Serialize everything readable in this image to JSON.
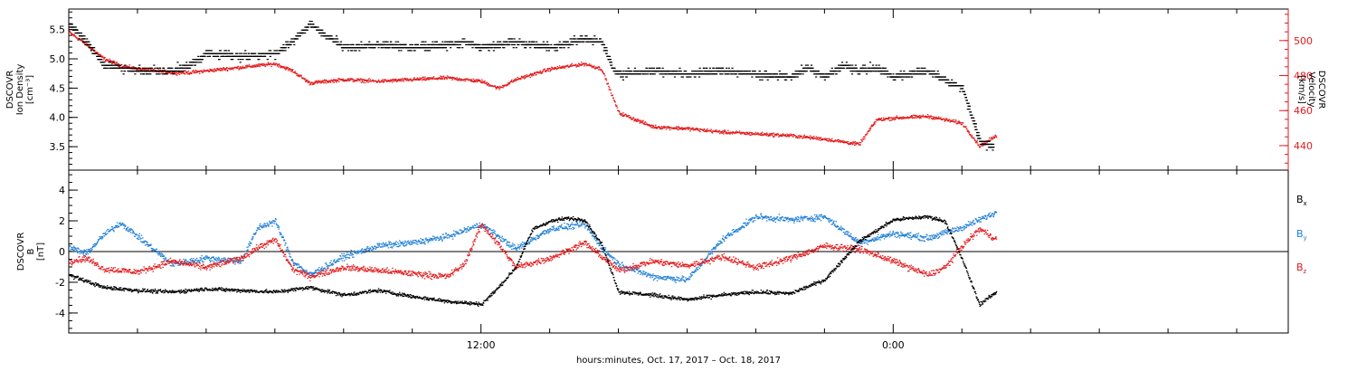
{
  "x_axis_label": "hours:minutes, Oct. 17, 2017 – Oct. 18, 2017",
  "colors": {
    "black": "#000000",
    "red": "#e31a1c",
    "blue": "#1f7fd6"
  },
  "chart_data": [
    {
      "type": "scatter",
      "panel": "top",
      "ylabel_left": [
        "DSCOVR",
        "Ion Density",
        "[cm⁻³]"
      ],
      "ylabel_right": [
        "DSCOVR",
        "Velocity",
        "[km/s]"
      ],
      "x_ticks": [
        {
          "hour": 12,
          "label": "12:00"
        },
        {
          "hour": 24,
          "label": "0:00"
        }
      ],
      "xlim_hours": [
        0,
        35.5
      ],
      "ylim_left": [
        3.1,
        5.85
      ],
      "yticks_left": [
        "5.5",
        "5.0",
        "4.5",
        "4.0",
        "3.5"
      ],
      "ylim_right": [
        426,
        518
      ],
      "yticks_right": [
        "500",
        "480",
        "460",
        "440"
      ],
      "series": [
        {
          "color": "black",
          "axis": "left",
          "points": [
            [
              0,
              5.6
            ],
            [
              0.5,
              5.3
            ],
            [
              1,
              4.9
            ],
            [
              1.5,
              4.85
            ],
            [
              2,
              4.8
            ],
            [
              3,
              4.8
            ],
            [
              3.5,
              4.9
            ],
            [
              4,
              5.1
            ],
            [
              5,
              5.05
            ],
            [
              6,
              5.1
            ],
            [
              6.5,
              5.3
            ],
            [
              7,
              5.6
            ],
            [
              7.5,
              5.4
            ],
            [
              8,
              5.2
            ],
            [
              9,
              5.25
            ],
            [
              10,
              5.2
            ],
            [
              11,
              5.25
            ],
            [
              11.5,
              5.3
            ],
            [
              12,
              5.2
            ],
            [
              12.5,
              5.25
            ],
            [
              13,
              5.3
            ],
            [
              14,
              5.2
            ],
            [
              15,
              5.35
            ],
            [
              15.5,
              5.3
            ],
            [
              15.8,
              4.85
            ],
            [
              16,
              4.75
            ],
            [
              17,
              4.8
            ],
            [
              18,
              4.75
            ],
            [
              19,
              4.8
            ],
            [
              20,
              4.75
            ],
            [
              21,
              4.7
            ],
            [
              21.5,
              4.85
            ],
            [
              22,
              4.7
            ],
            [
              22.5,
              4.9
            ],
            [
              23,
              4.8
            ],
            [
              23.5,
              4.85
            ],
            [
              24,
              4.7
            ],
            [
              25,
              4.8
            ],
            [
              26,
              4.5
            ],
            [
              26.5,
              3.6
            ],
            [
              26.9,
              3.5
            ]
          ]
        },
        {
          "color": "red",
          "axis": "right",
          "points": [
            [
              0,
              505
            ],
            [
              0.5,
              498
            ],
            [
              1,
              490
            ],
            [
              1.5,
              486
            ],
            [
              2,
              484
            ],
            [
              3,
              482
            ],
            [
              3.5,
              482
            ],
            [
              4,
              483
            ],
            [
              5,
              485
            ],
            [
              6,
              487
            ],
            [
              6.5,
              483
            ],
            [
              7,
              476
            ],
            [
              8,
              478
            ],
            [
              9,
              477
            ],
            [
              10,
              478
            ],
            [
              11,
              479
            ],
            [
              12,
              477
            ],
            [
              12.5,
              473
            ],
            [
              13,
              478
            ],
            [
              14,
              484
            ],
            [
              15,
              487
            ],
            [
              15.5,
              484
            ],
            [
              16,
              459
            ],
            [
              17,
              451
            ],
            [
              18,
              450
            ],
            [
              19,
              448
            ],
            [
              20,
              447
            ],
            [
              21,
              446
            ],
            [
              22,
              444
            ],
            [
              23,
              441
            ],
            [
              23.5,
              455
            ],
            [
              24,
              456
            ],
            [
              25,
              457
            ],
            [
              26,
              453
            ],
            [
              26.5,
              440
            ],
            [
              27,
              446
            ]
          ]
        }
      ]
    },
    {
      "type": "scatter",
      "panel": "bottom",
      "ylabel_left": [
        "DSCOVR",
        "B",
        "[nT]"
      ],
      "yticks_left": [
        "4",
        "2",
        "0",
        "-2",
        "-4"
      ],
      "ylim": [
        -5.3,
        5.3
      ],
      "xlim_hours": [
        0,
        35.5
      ],
      "legend": [
        {
          "label": "Bₓ",
          "color": "black"
        },
        {
          "label": "Bᵧ",
          "color": "blue"
        },
        {
          "label": "B_z",
          "color": "red"
        }
      ],
      "series": [
        {
          "name": "Bx",
          "color": "black",
          "points": [
            [
              0,
              -1.5
            ],
            [
              0.5,
              -1.9
            ],
            [
              1,
              -2.3
            ],
            [
              2,
              -2.5
            ],
            [
              3,
              -2.6
            ],
            [
              4,
              -2.4
            ],
            [
              5,
              -2.5
            ],
            [
              6,
              -2.6
            ],
            [
              7,
              -2.3
            ],
            [
              8,
              -2.8
            ],
            [
              9,
              -2.5
            ],
            [
              10,
              -2.9
            ],
            [
              11,
              -3.2
            ],
            [
              12,
              -3.4
            ],
            [
              12.5,
              -2.3
            ],
            [
              13,
              -1.0
            ],
            [
              13.5,
              1.5
            ],
            [
              14,
              2.0
            ],
            [
              14.5,
              2.2
            ],
            [
              15,
              2.1
            ],
            [
              15.5,
              0.5
            ],
            [
              16,
              -2.6
            ],
            [
              17,
              -2.8
            ],
            [
              18,
              -3.1
            ],
            [
              19,
              -2.8
            ],
            [
              20,
              -2.6
            ],
            [
              21,
              -2.7
            ],
            [
              22,
              -1.8
            ],
            [
              23,
              0.7
            ],
            [
              24,
              2.1
            ],
            [
              25,
              2.3
            ],
            [
              25.5,
              2.0
            ],
            [
              26,
              -0.5
            ],
            [
              26.5,
              -3.4
            ],
            [
              27,
              -2.6
            ]
          ]
        },
        {
          "name": "By",
          "color": "blue",
          "points": [
            [
              0,
              0.3
            ],
            [
              0.5,
              -0.1
            ],
            [
              1,
              1.1
            ],
            [
              1.5,
              1.9
            ],
            [
              2,
              1.0
            ],
            [
              3,
              -0.8
            ],
            [
              4,
              -0.4
            ],
            [
              5,
              -0.6
            ],
            [
              5.5,
              1.6
            ],
            [
              6,
              2.0
            ],
            [
              6.5,
              -0.6
            ],
            [
              7,
              -1.5
            ],
            [
              8,
              -0.3
            ],
            [
              9,
              0.4
            ],
            [
              10,
              0.6
            ],
            [
              11,
              1.0
            ],
            [
              12,
              1.8
            ],
            [
              12.5,
              1.0
            ],
            [
              13,
              0.2
            ],
            [
              14,
              1.5
            ],
            [
              15,
              1.8
            ],
            [
              15.5,
              0.3
            ],
            [
              16,
              -0.8
            ],
            [
              17,
              -1.6
            ],
            [
              18,
              -1.8
            ],
            [
              19,
              0.8
            ],
            [
              20,
              2.3
            ],
            [
              21,
              2.1
            ],
            [
              22,
              2.3
            ],
            [
              23,
              0.6
            ],
            [
              24,
              1.2
            ],
            [
              25,
              0.9
            ],
            [
              26,
              1.6
            ],
            [
              27,
              2.6
            ]
          ]
        },
        {
          "name": "Bz",
          "color": "red",
          "points": [
            [
              0,
              -0.6
            ],
            [
              0.5,
              -0.4
            ],
            [
              1,
              -1.1
            ],
            [
              2,
              -1.3
            ],
            [
              3,
              -0.6
            ],
            [
              4,
              -1.0
            ],
            [
              5,
              -0.4
            ],
            [
              5.5,
              0.3
            ],
            [
              6,
              0.8
            ],
            [
              6.5,
              -1.1
            ],
            [
              7,
              -1.6
            ],
            [
              8,
              -1.0
            ],
            [
              9,
              -1.2
            ],
            [
              10,
              -1.4
            ],
            [
              11,
              -1.6
            ],
            [
              11.5,
              -0.8
            ],
            [
              12,
              1.8
            ],
            [
              12.5,
              0.5
            ],
            [
              13,
              -1.0
            ],
            [
              14,
              -0.4
            ],
            [
              15,
              0.6
            ],
            [
              15.5,
              -0.3
            ],
            [
              16,
              -1.2
            ],
            [
              17,
              -0.6
            ],
            [
              18,
              -0.9
            ],
            [
              19,
              -0.3
            ],
            [
              20,
              -1.0
            ],
            [
              21,
              -0.4
            ],
            [
              22,
              0.4
            ],
            [
              23,
              0.2
            ],
            [
              24,
              -0.6
            ],
            [
              25,
              -1.5
            ],
            [
              25.5,
              -1.0
            ],
            [
              26,
              0.4
            ],
            [
              26.5,
              1.5
            ],
            [
              27,
              0.8
            ]
          ]
        }
      ]
    }
  ]
}
